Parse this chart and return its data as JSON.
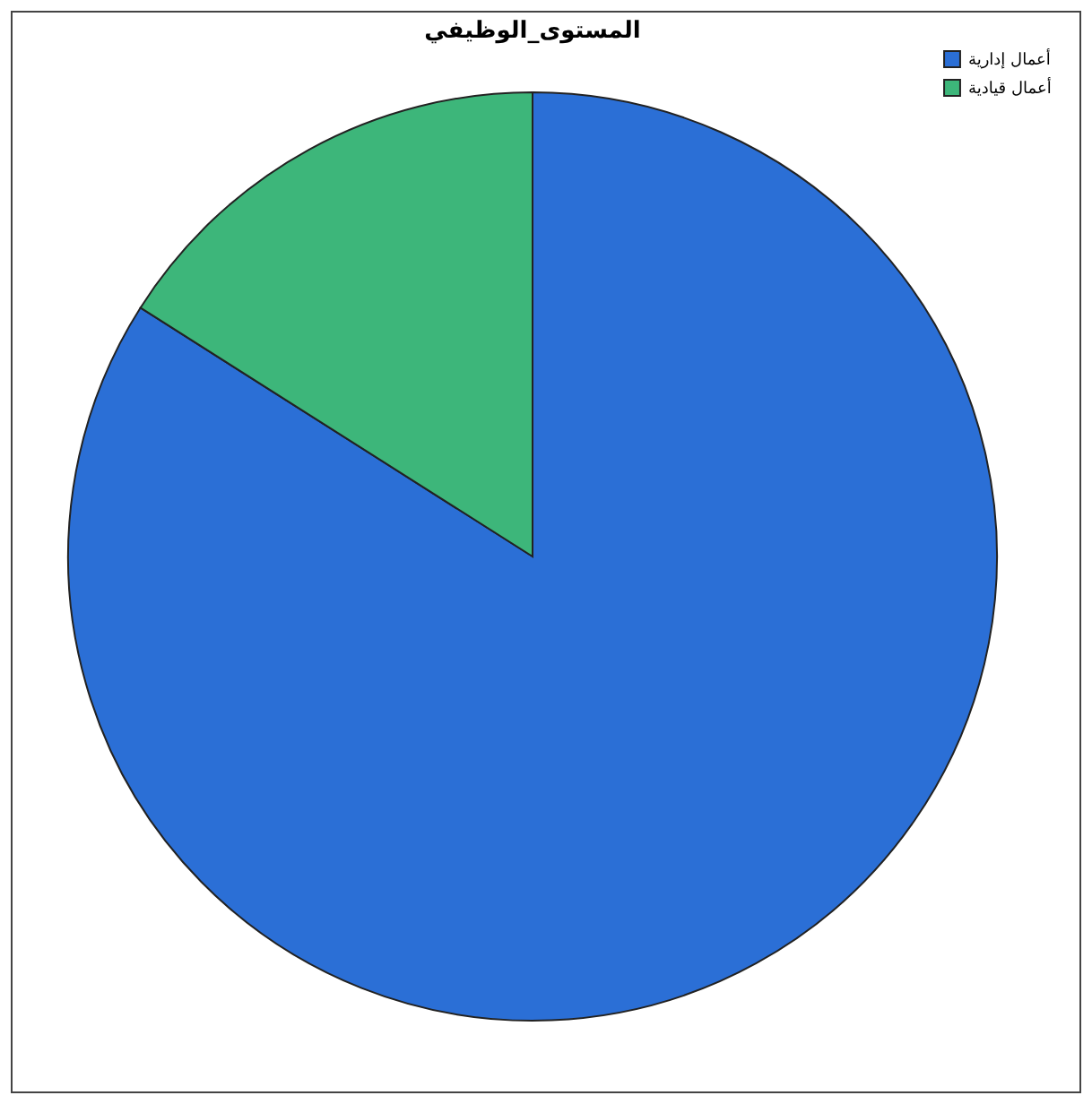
{
  "chart_data": {
    "type": "pie",
    "title": "المستوى_الوظيفي",
    "categories": [
      "أعمال إدارية",
      "أعمال قيادية"
    ],
    "values": [
      84,
      16
    ],
    "colors": [
      "#2b6fd6",
      "#3db67a"
    ],
    "legend": "top right"
  }
}
